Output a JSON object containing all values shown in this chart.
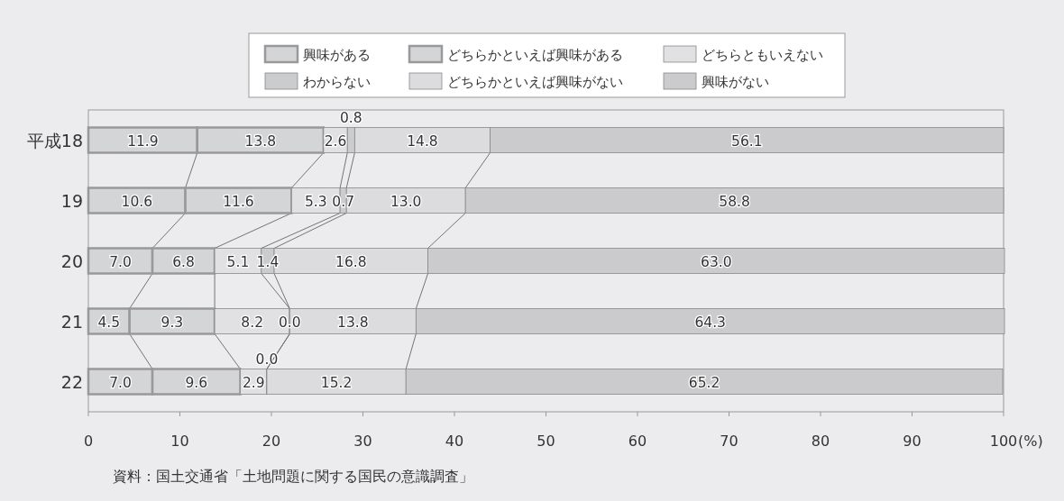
{
  "chart_data": {
    "type": "bar",
    "orientation": "horizontal",
    "stacked": true,
    "legend": "top",
    "grid": false,
    "categories": [
      "平成18",
      "19",
      "20",
      "21",
      "22"
    ],
    "xlabel": "(%)",
    "xlim": [
      0,
      100
    ],
    "xticks": [
      0,
      10,
      20,
      30,
      40,
      50,
      60,
      70,
      80,
      90,
      100
    ],
    "annotations": [
      "資料：国土交通省「土地問題に関する国民の意識調査」"
    ],
    "series": [
      {
        "name": "興味がある",
        "color": "#d4d5d7",
        "values": [
          11.9,
          10.6,
          7.0,
          4.5,
          7.0
        ],
        "value_labels": [
          "11.9",
          "10.6",
          "7.0",
          "4.5",
          "7.0"
        ]
      },
      {
        "name": "どちらかといえば興味がある",
        "color": "#d4d5d7",
        "values": [
          13.8,
          11.6,
          6.8,
          9.3,
          9.6
        ],
        "value_labels": [
          "13.8",
          "11.6",
          "6.8",
          "9.3",
          "9.6"
        ]
      },
      {
        "name": "どちらともいえない",
        "color": "#e1e1e3",
        "values": [
          2.6,
          5.3,
          5.1,
          8.2,
          2.9
        ],
        "value_labels": [
          "2.6",
          "5.3",
          "5.1",
          "8.2",
          "2.9"
        ]
      },
      {
        "name": "わからない",
        "color": "#cbcccd",
        "values": [
          0.8,
          0.7,
          1.4,
          0.0,
          0.0
        ],
        "value_labels": [
          "0.8",
          "0.7",
          "1.4",
          "0.0",
          "0.0"
        ]
      },
      {
        "name": "どちらかといえば興味がない",
        "color": "#dcdcde",
        "values": [
          14.8,
          13.0,
          16.8,
          13.8,
          15.2
        ],
        "value_labels": [
          "14.8",
          "13.0",
          "16.8",
          "13.8",
          "15.2"
        ]
      },
      {
        "name": "興味がない",
        "color": "#cbcbcd",
        "values": [
          56.1,
          58.8,
          63.0,
          64.3,
          65.2
        ],
        "value_labels": [
          "56.1",
          "58.8",
          "63.0",
          "64.3",
          "65.2"
        ]
      }
    ]
  }
}
